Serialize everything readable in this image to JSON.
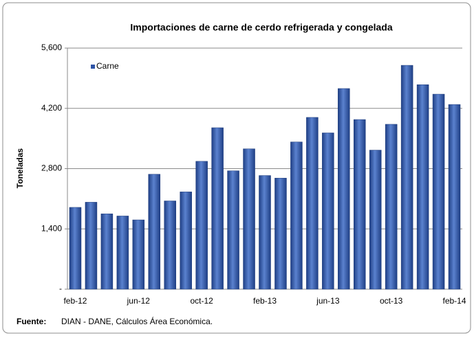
{
  "chart_data": {
    "type": "bar",
    "title": "Importaciones de carne de cerdo refrigerada y congelada",
    "y_label": "Toneladas",
    "categories": [
      "feb-12",
      null,
      null,
      null,
      "jun-12",
      null,
      null,
      null,
      "oct-12",
      null,
      null,
      null,
      "feb-13",
      null,
      null,
      null,
      "jun-13",
      null,
      null,
      null,
      "oct-13",
      null,
      null,
      null,
      "feb-14"
    ],
    "series": [
      {
        "name": "Carne",
        "color": "#2e54a6",
        "values": [
          1900,
          2020,
          1750,
          1700,
          1610,
          2670,
          2050,
          2260,
          2970,
          3750,
          2750,
          3260,
          2640,
          2580,
          3420,
          3990,
          3630,
          4660,
          3940,
          3230,
          3830,
          5200,
          4750,
          4530,
          4290
        ]
      }
    ],
    "ylim": [
      0,
      5600
    ],
    "yticks": [
      {
        "value": 0,
        "label": "-"
      },
      {
        "value": 1400,
        "label": "1,400"
      },
      {
        "value": 2800,
        "label": "2,800"
      },
      {
        "value": 4200,
        "label": "4,200"
      },
      {
        "value": 5600,
        "label": "5,600"
      }
    ],
    "grid": true,
    "legend": "top-left",
    "source_label": "Fuente:",
    "source": "DIAN - DANE,  Cálculos Área Económica."
  }
}
